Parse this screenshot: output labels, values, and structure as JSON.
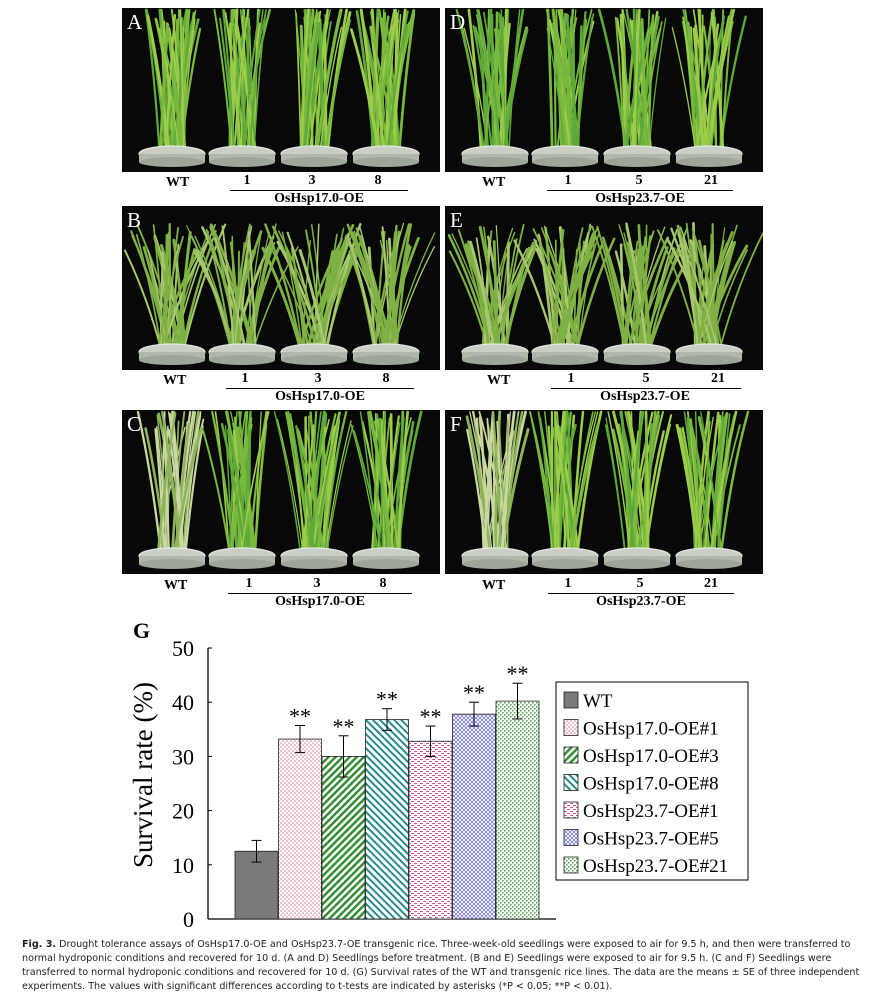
{
  "panels": [
    {
      "letter": "A",
      "wt": "WT",
      "lines": [
        "1",
        "3",
        "8"
      ],
      "group": "OsHsp17.0-OE"
    },
    {
      "letter": "D",
      "wt": "WT",
      "lines": [
        "1",
        "5",
        "21"
      ],
      "group": "OsHsp23.7-OE"
    },
    {
      "letter": "B",
      "wt": "WT",
      "lines": [
        "1",
        "3",
        "8"
      ],
      "group": "OsHsp17.0-OE"
    },
    {
      "letter": "E",
      "wt": "WT",
      "lines": [
        "1",
        "5",
        "21"
      ],
      "group": "OsHsp23.7-OE"
    },
    {
      "letter": "C",
      "wt": "WT",
      "lines": [
        "1",
        "3",
        "8"
      ],
      "group": "OsHsp17.0-OE"
    },
    {
      "letter": "F",
      "wt": "WT",
      "lines": [
        "1",
        "5",
        "21"
      ],
      "group": "OsHsp23.7-OE"
    }
  ],
  "chart_data": {
    "type": "bar",
    "panel_letter": "G",
    "ylabel": "Survival rate (%)",
    "ylim": [
      0,
      50
    ],
    "yticks": [
      "0",
      "10",
      "20",
      "30",
      "40",
      "50"
    ],
    "grid": false,
    "legend_position": "right",
    "series": [
      {
        "name": "WT",
        "value": 12.5,
        "error": 2.0,
        "signif": "",
        "color": "#7a7a7a",
        "pattern": "solid-gray"
      },
      {
        "name": "OsHsp17.0-OE#1",
        "value": 33.2,
        "error": 2.5,
        "signif": "**",
        "color": "#e87a8a",
        "pattern": "pink-dots"
      },
      {
        "name": "OsHsp17.0-OE#3",
        "value": 30.0,
        "error": 3.8,
        "signif": "**",
        "color": "#2e8b2e",
        "pattern": "green-diagonal"
      },
      {
        "name": "OsHsp17.0-OE#8",
        "value": 36.8,
        "error": 2.0,
        "signif": "**",
        "color": "#2a8a8a",
        "pattern": "teal-diagonal"
      },
      {
        "name": "OsHsp23.7-OE#1",
        "value": 32.8,
        "error": 2.8,
        "signif": "**",
        "color": "#d9508a",
        "pattern": "magenta-dashes"
      },
      {
        "name": "OsHsp23.7-OE#5",
        "value": 37.8,
        "error": 2.2,
        "signif": "**",
        "color": "#6a6ad8",
        "pattern": "blue-grid"
      },
      {
        "name": "OsHsp23.7-OE#21",
        "value": 40.2,
        "error": 3.3,
        "signif": "**",
        "color": "#4aa04a",
        "pattern": "green-dots"
      }
    ]
  },
  "caption": {
    "label": "Fig. 3.",
    "text": "Drought tolerance assays of OsHsp17.0-OE and OsHsp23.7-OE transgenic rice. Three-week-old seedlings were exposed to air for 9.5 h, and then were transferred to normal hydroponic conditions and recovered for 10 d. (A and D) Seedlings before treatment. (B and E) Seedlings were exposed to air for 9.5 h. (C and F) Seedlings were transferred to normal hydroponic conditions and recovered for 10 d. (G) Survival rates of the WT and transgenic rice lines. The data are the means ± SE of three independent experiments. The values with significant differences according to t-tests are indicated by asterisks (*P < 0.05; **P < 0.01)."
  }
}
